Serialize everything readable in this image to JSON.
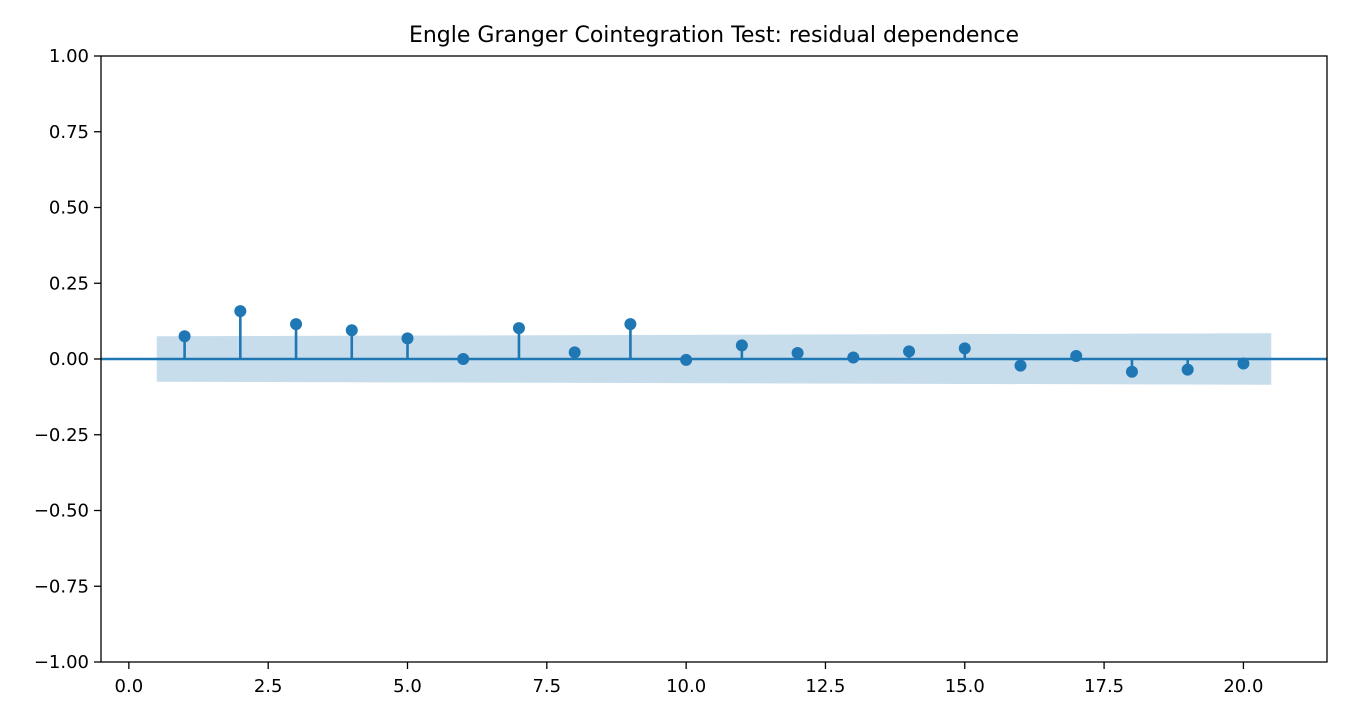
{
  "chart_data": {
    "type": "stem",
    "title": "Engle Granger Cointegration Test: residual dependence",
    "xlabel": "",
    "ylabel": "",
    "xlim": [
      -0.5,
      21.5
    ],
    "ylim": [
      -1.0,
      1.0
    ],
    "x_ticks": [
      0.0,
      2.5,
      5.0,
      7.5,
      10.0,
      12.5,
      15.0,
      17.5,
      20.0
    ],
    "x_tick_labels": [
      "0.0",
      "2.5",
      "5.0",
      "7.5",
      "10.0",
      "12.5",
      "15.0",
      "17.5",
      "20.0"
    ],
    "y_ticks": [
      -1.0,
      -0.75,
      -0.5,
      -0.25,
      0.0,
      0.25,
      0.5,
      0.75,
      1.0
    ],
    "y_tick_labels": [
      "−1.00",
      "−0.75",
      "−0.50",
      "−0.25",
      "0.00",
      "0.25",
      "0.50",
      "0.75",
      "1.00"
    ],
    "grid": false,
    "series": [
      {
        "x": [
          1,
          2,
          3,
          4,
          5,
          6,
          7,
          8,
          9,
          10,
          11,
          12,
          13,
          14,
          15,
          16,
          17,
          18,
          19,
          20
        ],
        "values": [
          0.075,
          0.158,
          0.115,
          0.095,
          0.068,
          0.0,
          0.102,
          0.022,
          0.115,
          -0.003,
          0.045,
          0.02,
          0.005,
          0.025,
          0.035,
          -0.022,
          0.01,
          -0.042,
          -0.035,
          -0.015
        ]
      }
    ],
    "confidence_band": {
      "x_start": 0.5,
      "x_end": 20.5,
      "half_width_start": 0.075,
      "half_width_end": 0.085
    },
    "colors": {
      "series": "#1f77b4",
      "band": "#1f77b4"
    }
  }
}
